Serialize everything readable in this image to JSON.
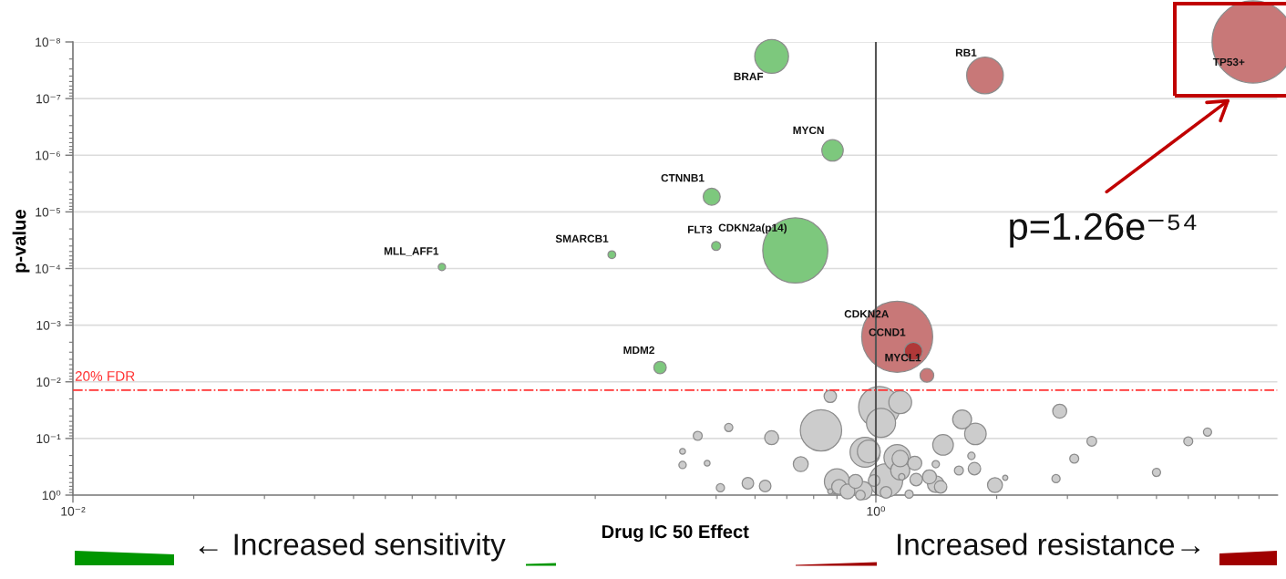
{
  "chart_data": {
    "type": "bubble",
    "xlabel": "Drug IC 50 Effect",
    "ylabel": "p-value",
    "log": "xy",
    "marker": "circle",
    "grid": "y",
    "xlim": [
      0.01,
      10
    ],
    "ylim": [
      1,
      1e-08
    ],
    "xticks": [
      {
        "value": 0.01,
        "label": "10⁻²"
      },
      {
        "value": 1,
        "label": "10⁰"
      }
    ],
    "yticks": [
      {
        "value": 1e-08,
        "label": "10⁻⁸"
      },
      {
        "value": 1e-07,
        "label": "10⁻⁷"
      },
      {
        "value": 1e-06,
        "label": "10⁻⁶"
      },
      {
        "value": 1e-05,
        "label": "10⁻⁵"
      },
      {
        "value": 0.0001,
        "label": "10⁻⁴"
      },
      {
        "value": 0.001,
        "label": "10⁻³"
      },
      {
        "value": 0.01,
        "label": "10⁻²"
      },
      {
        "value": 0.1,
        "label": "10⁻¹"
      },
      {
        "value": 1,
        "label": "10⁰"
      }
    ],
    "series": [
      {
        "color": "#7dc87d",
        "x": [
          0.55,
          0.78,
          0.39,
          0.63,
          0.4,
          0.22,
          0.083,
          0.29
        ],
        "values": [
          1.8e-08,
          8.2e-07,
          5.4e-06,
          4.8e-05,
          4e-05,
          5.7e-05,
          9.4e-05,
          0.0056
        ],
        "sizes": [
          0.17,
          0.068,
          0.043,
          0.63,
          0.012,
          0.009,
          0.008,
          0.023
        ]
      },
      {
        "colors": [
          "#c87878",
          "#c87878",
          "#c87878",
          "#b03838",
          "#c87878"
        ],
        "x": [
          1.87,
          8.7,
          1.13,
          1.24,
          1.34
        ],
        "values": [
          3.9e-08,
          1e-08,
          0.0016,
          0.0029,
          0.0077
        ],
        "sizes": [
          0.2,
          1,
          0.75,
          0.049,
          0.028
        ]
      },
      {
        "color": "#cccccc",
        "x": [
          0.77,
          1.02,
          1.15,
          1.03,
          0.73,
          0.43,
          0.36,
          0.55,
          2.87,
          1.64,
          1.77,
          3.45,
          6.0,
          6.7,
          1.47,
          0.33,
          0.33,
          0.38,
          0.65,
          0.94,
          0.96,
          1.13,
          1.15,
          1.25,
          1.73,
          1.41,
          3.12,
          1.61,
          1.76,
          1.15,
          1.16,
          0.8,
          0.81,
          0.89,
          1.06,
          0.99,
          0.85,
          0.93,
          0.915,
          1.06,
          1.21,
          0.77,
          1.26,
          1.36,
          1.41,
          1.45,
          1.98,
          2.1,
          2.81,
          5.0,
          0.48,
          0.53,
          0.41
        ],
        "values": [
          0.018,
          0.028,
          0.023,
          0.053,
          0.072,
          0.064,
          0.09,
          0.097,
          0.033,
          0.046,
          0.083,
          0.112,
          0.112,
          0.077,
          0.13,
          0.169,
          0.294,
          0.273,
          0.284,
          0.175,
          0.169,
          0.219,
          0.227,
          0.273,
          0.203,
          0.284,
          0.227,
          0.367,
          0.341,
          0.367,
          0.476,
          0.573,
          0.716,
          0.573,
          0.552,
          0.552,
          0.863,
          0.831,
          1.0,
          0.895,
          0.96,
          0.863,
          0.532,
          0.476,
          0.641,
          0.716,
          0.665,
          0.494,
          0.513,
          0.396,
          0.618,
          0.69,
          0.743
        ],
        "sizes": [
          0.023,
          0.254,
          0.077,
          0.126,
          0.254,
          0.01,
          0.012,
          0.029,
          0.029,
          0.053,
          0.069,
          0.014,
          0.012,
          0.01,
          0.063,
          0.005,
          0.008,
          0.005,
          0.033,
          0.134,
          0.077,
          0.104,
          0.04,
          0.029,
          0.008,
          0.008,
          0.012,
          0.012,
          0.023,
          0.054,
          0.006,
          0.094,
          0.033,
          0.029,
          0.165,
          0.02,
          0.032,
          0.049,
          0.014,
          0.02,
          0.01,
          0.004,
          0.023,
          0.029,
          0.041,
          0.023,
          0.033,
          0.004,
          0.01,
          0.01,
          0.02,
          0.02,
          0.01
        ]
      }
    ],
    "ref_lines": [
      {
        "axis": "x",
        "value": 1,
        "color": "#555555",
        "line_style": "solid"
      },
      {
        "axis": "y",
        "value": 0.014,
        "label": "20% FDR",
        "color": "#ff3333",
        "line_style": "dashdot"
      }
    ],
    "annotations": [
      {
        "text": "BRAF",
        "x": 0.55,
        "y": 1.8e-08
      },
      {
        "text": "MYCN",
        "x": 0.78,
        "y": 8.2e-07
      },
      {
        "text": "CTNNB1",
        "x": 0.39,
        "y": 5.4e-06
      },
      {
        "text": "CDKN2a(p14)",
        "x": 0.63,
        "y": 4.8e-05
      },
      {
        "text": "FLT3",
        "x": 0.4,
        "y": 4e-05
      },
      {
        "text": "SMARCB1",
        "x": 0.22,
        "y": 5.7e-05
      },
      {
        "text": "MLL_AFF1",
        "x": 0.083,
        "y": 9.4e-05
      },
      {
        "text": "MDM2",
        "x": 0.29,
        "y": 0.0056
      },
      {
        "text": "RB1",
        "x": 1.87,
        "y": 3.9e-08
      },
      {
        "text": "TP53+",
        "x": 8.7,
        "y": 1e-08
      },
      {
        "text": "CDKN2A",
        "x": 1.13,
        "y": 0.0016
      },
      {
        "text": "CCND1",
        "x": 1.24,
        "y": 0.0029
      },
      {
        "text": "MYCL1",
        "x": 1.34,
        "y": 0.0077
      },
      "p=1.26e⁻⁵⁴",
      "← Increased sensitivity",
      "Increased resistance→"
    ]
  }
}
